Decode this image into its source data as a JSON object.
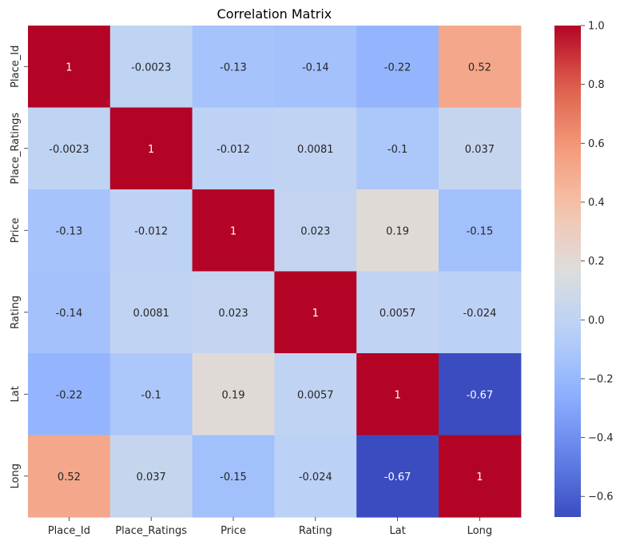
{
  "chart_data": {
    "type": "heatmap",
    "title": "Correlation Matrix",
    "xlabel": "",
    "ylabel": "",
    "x_categories": [
      "Place_Id",
      "Place_Ratings",
      "Price",
      "Rating",
      "Lat",
      "Long"
    ],
    "y_categories": [
      "Place_Id",
      "Place_Ratings",
      "Price",
      "Rating",
      "Lat",
      "Long"
    ],
    "values": [
      [
        1,
        -0.0023,
        -0.13,
        -0.14,
        -0.22,
        0.52
      ],
      [
        -0.0023,
        1,
        -0.012,
        0.0081,
        -0.1,
        0.037
      ],
      [
        -0.13,
        -0.012,
        1,
        0.023,
        0.19,
        -0.15
      ],
      [
        -0.14,
        0.0081,
        0.023,
        1,
        0.0057,
        -0.024
      ],
      [
        -0.22,
        -0.1,
        0.19,
        0.0057,
        1,
        -0.67
      ],
      [
        0.52,
        0.037,
        -0.15,
        -0.024,
        -0.67,
        1
      ]
    ],
    "labels": [
      [
        "1",
        "-0.0023",
        "-0.13",
        "-0.14",
        "-0.22",
        "0.52"
      ],
      [
        "-0.0023",
        "1",
        "-0.012",
        "0.0081",
        "-0.1",
        "0.037"
      ],
      [
        "-0.13",
        "-0.012",
        "1",
        "0.023",
        "0.19",
        "-0.15"
      ],
      [
        "-0.14",
        "0.0081",
        "0.023",
        "1",
        "0.0057",
        "-0.024"
      ],
      [
        "-0.22",
        "-0.1",
        "0.19",
        "0.0057",
        "1",
        "-0.67"
      ],
      [
        "0.52",
        "0.037",
        "-0.15",
        "-0.024",
        "-0.67",
        "1"
      ]
    ],
    "colormap": "coolwarm",
    "colorbar": {
      "range": [
        -0.67,
        1.0
      ],
      "ticks": [
        -0.6,
        -0.4,
        -0.2,
        0.0,
        0.2,
        0.4,
        0.6,
        0.8,
        1.0
      ],
      "tick_labels": [
        "−0.6",
        "−0.4",
        "−0.2",
        "0.0",
        "0.2",
        "0.4",
        "0.6",
        "0.8",
        "1.0"
      ]
    }
  }
}
